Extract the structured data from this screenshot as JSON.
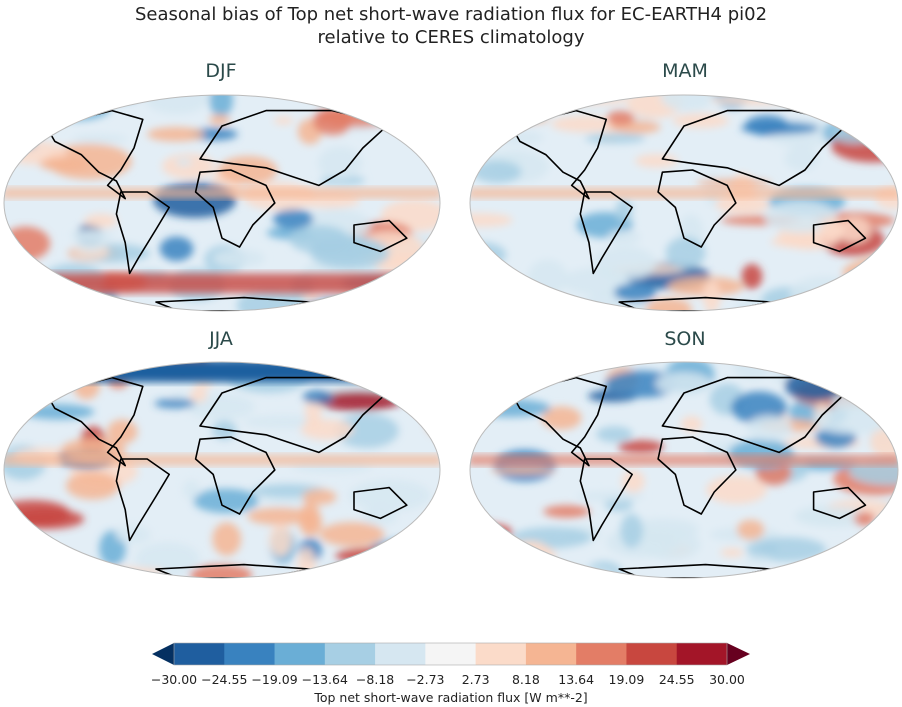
{
  "title_line1": "Seasonal bias of Top net short-wave radiation flux for EC-EARTH4 pi02",
  "title_line2": "relative to CERES climatology",
  "panels": [
    {
      "season": "DJF"
    },
    {
      "season": "MAM"
    },
    {
      "season": "JJA"
    },
    {
      "season": "SON"
    }
  ],
  "colorbar": {
    "label": "Top net short-wave radiation flux [W m**-2]",
    "ticks": [
      "−30.00",
      "−24.55",
      "−19.09",
      "−13.64",
      "−8.18",
      "−2.73",
      "2.73",
      "8.18",
      "13.64",
      "19.09",
      "24.55",
      "30.00"
    ],
    "colors": [
      "#053061",
      "#2166ac",
      "#4393c3",
      "#92c5de",
      "#d1e5f0",
      "#f7f7f7",
      "#fddbc7",
      "#f4a582",
      "#d6604d",
      "#b2182b",
      "#67001f"
    ],
    "bins": [
      "#1f5e9f",
      "#3982bf",
      "#6aaed6",
      "#a7cfe4",
      "#d6e7f1",
      "#f5f5f5",
      "#fbdbc9",
      "#f5b593",
      "#e37d66",
      "#c8473f",
      "#a31528"
    ],
    "extend": "both",
    "colormap": "RdBu_r"
  }
}
